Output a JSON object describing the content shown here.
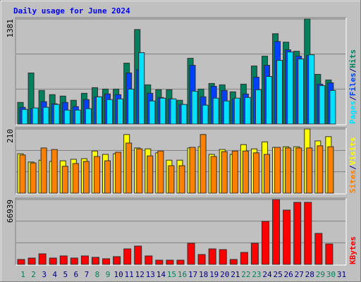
{
  "chart_data": [
    {
      "type": "bar",
      "title": "Daily usage for June 2024",
      "ylim": [
        0,
        1381
      ],
      "yticks": [
        1381
      ],
      "legend_separator": "/",
      "series": [
        {
          "name": "Pages",
          "color": "#00e0ff",
          "values": [
            193,
            212,
            221,
            258,
            184,
            184,
            203,
            359,
            322,
            331,
            460,
            939,
            304,
            341,
            331,
            258,
            433,
            249,
            341,
            304,
            341,
            350,
            451,
            626,
            838,
            948,
            856,
            911,
            506,
            442,
            null
          ]
        },
        {
          "name": "Files",
          "color": "#0040ff",
          "values": [
            221,
            203,
            295,
            267,
            285,
            230,
            322,
            359,
            396,
            387,
            672,
            718,
            405,
            350,
            331,
            258,
            773,
            359,
            497,
            442,
            331,
            396,
            617,
            773,
            1086,
            976,
            893,
            902,
            525,
            543,
            null
          ]
        },
        {
          "name": "Hits",
          "color": "#00805c",
          "values": [
            285,
            672,
            442,
            387,
            368,
            313,
            405,
            479,
            460,
            460,
            801,
            1243,
            516,
            451,
            451,
            313,
            865,
            460,
            534,
            516,
            424,
            525,
            764,
            893,
            1188,
            1077,
            958,
            1381,
            654,
            580,
            null
          ]
        }
      ]
    },
    {
      "type": "bar",
      "ylim": [
        0,
        210
      ],
      "yticks": [
        210
      ],
      "legend_separator": "/",
      "series": [
        {
          "name": "Sites",
          "color": "#ff8000",
          "values": [
            125,
            99,
            148,
            143,
            88,
            97,
            104,
            120,
            106,
            134,
            164,
            145,
            122,
            138,
            90,
            90,
            150,
            192,
            120,
            136,
            138,
            138,
            132,
            127,
            150,
            148,
            148,
            148,
            155,
            152,
            null
          ]
        },
        {
          "name": "Visits",
          "color": "#ffff00",
          "values": [
            129,
            102,
            108,
            104,
            106,
            111,
            113,
            138,
            127,
            129,
            192,
            148,
            145,
            132,
            108,
            108,
            148,
            152,
            127,
            143,
            127,
            159,
            145,
            168,
            150,
            152,
            152,
            210,
            171,
            185,
            null
          ]
        }
      ]
    },
    {
      "type": "bar",
      "ylim": [
        0,
        66939
      ],
      "yticks": [
        66939
      ],
      "categories": [
        "1",
        "2",
        "3",
        "4",
        "5",
        "6",
        "7",
        "8",
        "9",
        "10",
        "11",
        "12",
        "13",
        "14",
        "15",
        "16",
        "17",
        "18",
        "19",
        "20",
        "21",
        "22",
        "23",
        "24",
        "25",
        "26",
        "27",
        "28",
        "29",
        "30",
        "31"
      ],
      "category_colors": [
        "#00805c",
        "#00805c",
        "#000080",
        "#000080",
        "#000080",
        "#000080",
        "#000080",
        "#00805c",
        "#00805c",
        "#000080",
        "#000080",
        "#000080",
        "#000080",
        "#000080",
        "#00805c",
        "#00805c",
        "#000080",
        "#000080",
        "#000080",
        "#000080",
        "#000080",
        "#00805c",
        "#00805c",
        "#000080",
        "#000080",
        "#000080",
        "#000080",
        "#000080",
        "#00805c",
        "#00805c",
        "#000080"
      ],
      "series": [
        {
          "name": "KBytes",
          "color": "#ff0000",
          "values": [
            5093,
            6548,
            10913,
            6548,
            8731,
            6548,
            8731,
            7276,
            5821,
            8003,
            16007,
            18918,
            8731,
            4366,
            4366,
            4366,
            21828,
            10186,
            16007,
            15280,
            5093,
            12369,
            21828,
            44384,
            66939,
            56023,
            64025,
            64025,
            32013,
            21100,
            null
          ]
        }
      ]
    }
  ]
}
